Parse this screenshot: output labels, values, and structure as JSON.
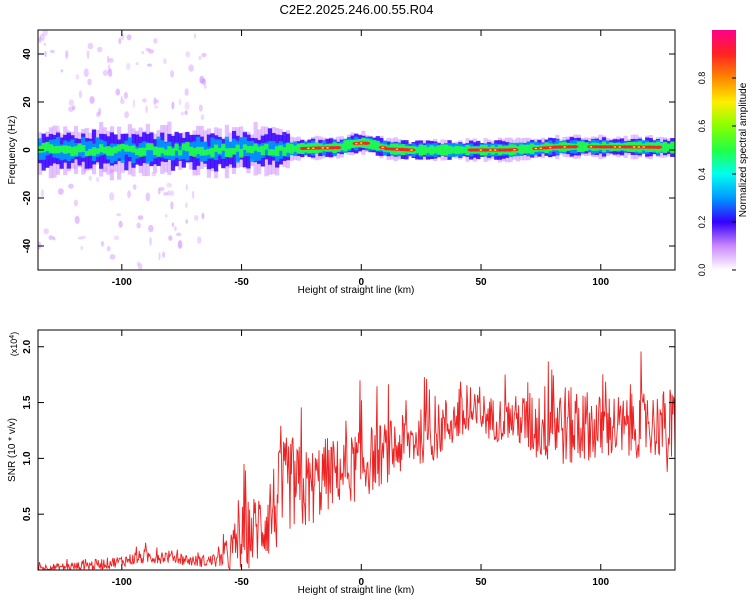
{
  "chart_data": [
    {
      "type": "heatmap",
      "title": "C2E2.2025.246.00.55.R04",
      "xlabel": "Height of straight line (km)",
      "ylabel": "Frequency (Hz)",
      "xlim": [
        -135,
        131
      ],
      "ylim": [
        -50,
        50
      ],
      "xticks": [
        -100,
        -50,
        0,
        50,
        100
      ],
      "xtick_labels": [
        "-100",
        "-50",
        "0",
        "50",
        "100"
      ],
      "yticks": [
        -40,
        -20,
        0,
        20,
        40
      ],
      "ytick_labels": [
        "-40",
        "-20",
        "0",
        "20",
        "40"
      ],
      "ridge": {
        "x": [
          -135,
          -110,
          -90,
          -70,
          -50,
          -40,
          -30,
          -20,
          -10,
          -5,
          0,
          5,
          10,
          20,
          30,
          40,
          50,
          60,
          70,
          80,
          90,
          100,
          110,
          120,
          131
        ],
        "freq": [
          0,
          0,
          0,
          0,
          0,
          0,
          0.5,
          0.8,
          1,
          2.5,
          3,
          2,
          0.5,
          0,
          0,
          0,
          0,
          0,
          0.5,
          1.2,
          1.4,
          1.3,
          1.3,
          1.2,
          1
        ]
      },
      "colorbar": {
        "label": "Normalized spectral amplitude",
        "range": [
          0,
          1
        ],
        "ticks": [
          0,
          0.2,
          0.4,
          0.6,
          0.8
        ],
        "tick_labels": [
          "0.0",
          "0.2",
          "0.4",
          "0.6",
          "0.8"
        ]
      }
    },
    {
      "type": "line",
      "title": "",
      "xlabel": "Height of straight line (km)",
      "ylabel": "SNR (10 * v/v)",
      "y_exponent_label": "(x10",
      "y_exponent_power": "4",
      "y_exponent_close": ")",
      "xlim": [
        -135,
        131
      ],
      "ylim": [
        0,
        2.15
      ],
      "xticks": [
        -100,
        -50,
        0,
        50,
        100
      ],
      "xtick_labels": [
        "-100",
        "-50",
        "0",
        "50",
        "100"
      ],
      "yticks": [
        0.5,
        1.0,
        1.5,
        2.0
      ],
      "ytick_labels": [
        "0.5",
        "1.0",
        "1.5",
        "2.0"
      ],
      "color": "#ee2222",
      "series": [
        {
          "name": "SNR",
          "x": [
            -135,
            -120,
            -110,
            -100,
            -90,
            -80,
            -70,
            -60,
            -55,
            -50,
            -45,
            -40,
            -35,
            -30,
            -25,
            -20,
            -15,
            -10,
            -5,
            0,
            5,
            10,
            15,
            20,
            25,
            30,
            35,
            40,
            45,
            50,
            55,
            60,
            65,
            70,
            75,
            80,
            85,
            90,
            95,
            100,
            105,
            110,
            115,
            120,
            125,
            128,
            131
          ],
          "y": [
            0.02,
            0.03,
            0.05,
            0.08,
            0.12,
            0.12,
            0.08,
            0.08,
            0.15,
            0.28,
            0.35,
            0.45,
            0.6,
            0.8,
            0.7,
            0.75,
            0.85,
            0.88,
            0.9,
            0.95,
            1.0,
            1.05,
            1.1,
            1.15,
            1.2,
            1.2,
            1.3,
            1.35,
            1.35,
            1.4,
            1.35,
            1.35,
            1.35,
            1.3,
            1.3,
            1.35,
            1.3,
            1.25,
            1.3,
            1.25,
            1.3,
            1.25,
            1.3,
            1.3,
            1.3,
            1.2,
            1.25
          ],
          "spread": [
            0.03,
            0.04,
            0.05,
            0.05,
            0.07,
            0.06,
            0.05,
            0.06,
            0.18,
            0.3,
            0.32,
            0.38,
            0.45,
            0.45,
            0.4,
            0.35,
            0.35,
            0.3,
            0.3,
            0.35,
            0.3,
            0.28,
            0.28,
            0.25,
            0.25,
            0.25,
            0.25,
            0.22,
            0.22,
            0.2,
            0.2,
            0.2,
            0.22,
            0.3,
            0.35,
            0.4,
            0.38,
            0.35,
            0.32,
            0.32,
            0.3,
            0.3,
            0.3,
            0.3,
            0.3,
            0.45,
            0.4
          ]
        }
      ]
    }
  ]
}
